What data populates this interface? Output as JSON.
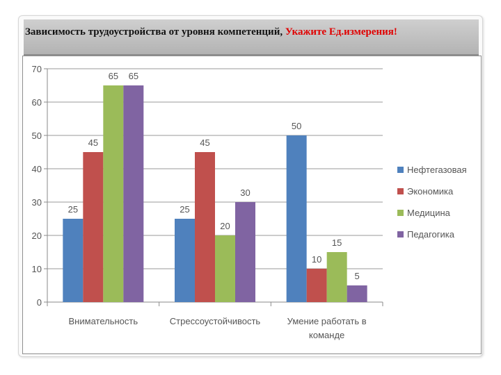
{
  "slide": {
    "title_main": "Зависимость трудоустройства от уровня компетенций,",
    "title_note": "Укажите Ед.измерения!"
  },
  "colors": {
    "Нефтегазовая": "#4f81bd",
    "Экономика": "#c0504d",
    "Медицина": "#9bbb59",
    "Педагогика": "#8064a2"
  },
  "chart_data": {
    "type": "bar",
    "categories": [
      [
        "Внимательность"
      ],
      [
        "Стрессоустойчивость"
      ],
      [
        "Умение работать в",
        "команде"
      ]
    ],
    "series": [
      {
        "name": "Нефтегазовая",
        "values": [
          25,
          25,
          50
        ]
      },
      {
        "name": "Экономика",
        "values": [
          45,
          45,
          10
        ]
      },
      {
        "name": "Медицина",
        "values": [
          65,
          20,
          15
        ]
      },
      {
        "name": "Педагогика",
        "values": [
          65,
          30,
          5
        ]
      }
    ],
    "ylim": [
      0,
      70
    ],
    "yticks": [
      0,
      10,
      20,
      30,
      40,
      50,
      60,
      70
    ],
    "grid": true,
    "data_labels": true,
    "legend": "right"
  }
}
